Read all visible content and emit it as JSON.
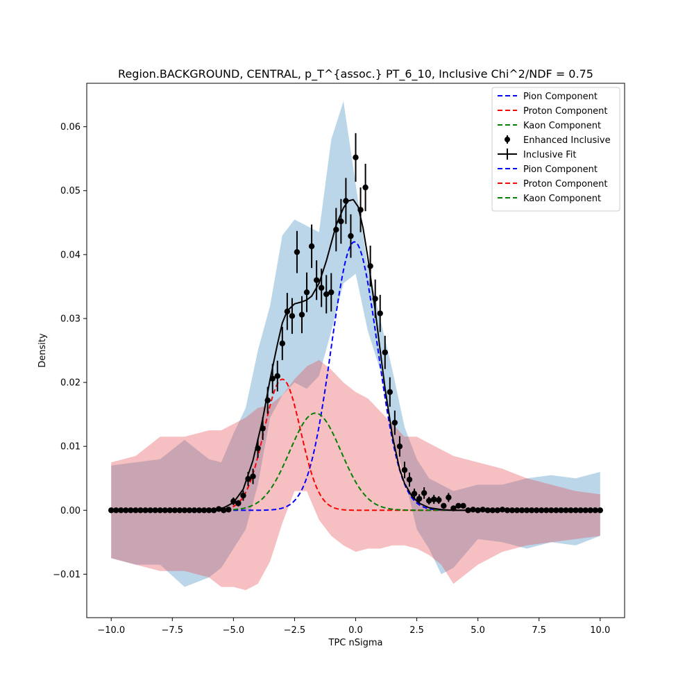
{
  "chart_data": {
    "type": "line",
    "title": "Region.BACKGROUND, CENTRAL, p_T^{assoc.} PT_6_10, Inclusive Chi^2/NDF = 0.75",
    "xlabel": "TPC nSigma",
    "ylabel": "Density",
    "xlim": [
      -11.0,
      11.0
    ],
    "ylim": [
      -0.0168,
      0.0668
    ],
    "xticks": [
      -10.0,
      -7.5,
      -5.0,
      -2.5,
      0.0,
      2.5,
      5.0,
      7.5,
      10.0
    ],
    "xtick_labels": [
      "−10.0",
      "−7.5",
      "−5.0",
      "−2.5",
      "0.0",
      "2.5",
      "5.0",
      "7.5",
      "10.0"
    ],
    "yticks": [
      -0.01,
      0.0,
      0.01,
      0.02,
      0.03,
      0.04,
      0.05,
      0.06
    ],
    "ytick_labels": [
      "−0.01",
      "0.00",
      "0.01",
      "0.02",
      "0.03",
      "0.04",
      "0.05",
      "0.06"
    ],
    "grid": false,
    "legend_position": "top-right",
    "legend": [
      {
        "label": "Pion Component",
        "style": "dashed",
        "color": "#0000ff"
      },
      {
        "label": "Proton Component",
        "style": "dashed",
        "color": "#ff0000"
      },
      {
        "label": "Kaon Component",
        "style": "dashed",
        "color": "#008000"
      },
      {
        "label": "Enhanced Inclusive",
        "style": "errorbar-point",
        "color": "#000000"
      },
      {
        "label": "Inclusive Fit",
        "style": "solid-errorbar",
        "color": "#000000"
      },
      {
        "label": "Pion Component",
        "style": "dashed",
        "color": "#0000ff"
      },
      {
        "label": "Proton Component",
        "style": "dashed",
        "color": "#ff0000"
      },
      {
        "label": "Kaon Component",
        "style": "dashed",
        "color": "#008000"
      }
    ],
    "components": [
      {
        "name": "Pion Component",
        "color": "#0000ff",
        "amplitude": 0.042,
        "mean": -0.05,
        "sigma": 0.95
      },
      {
        "name": "Proton Component",
        "color": "#ff0000",
        "amplitude": 0.0205,
        "mean": -3.0,
        "sigma": 0.75
      },
      {
        "name": "Kaon Component",
        "color": "#008000",
        "amplitude": 0.0152,
        "mean": -1.65,
        "sigma": 1.05
      }
    ],
    "bands": [
      {
        "name": "pion-uncertainty-band",
        "color": "#1f77b4",
        "opacity": 0.3,
        "x": [
          -10.0,
          -9.0,
          -8.0,
          -7.0,
          -6.0,
          -5.5,
          -5.0,
          -4.5,
          -4.0,
          -3.5,
          -3.0,
          -2.5,
          -2.0,
          -1.5,
          -1.0,
          -0.5,
          0.0,
          0.5,
          1.0,
          1.5,
          2.0,
          2.5,
          3.0,
          3.5,
          4.0,
          5.0,
          6.0,
          7.0,
          8.0,
          9.0,
          10.0
        ],
        "upper": [
          0.007,
          0.0075,
          0.008,
          0.011,
          0.008,
          0.0075,
          0.012,
          0.016,
          0.025,
          0.032,
          0.043,
          0.0455,
          0.0445,
          0.0435,
          0.058,
          0.064,
          0.051,
          0.038,
          0.03,
          0.022,
          0.013,
          0.008,
          0.005,
          0.004,
          0.003,
          0.004,
          0.004,
          0.005,
          0.0055,
          0.005,
          0.006
        ],
        "lower": [
          -0.0075,
          -0.0085,
          -0.0085,
          -0.012,
          -0.0105,
          -0.009,
          -0.006,
          -0.003,
          0.004,
          0.0145,
          0.018,
          0.02,
          0.019,
          0.021,
          0.028,
          0.0355,
          0.037,
          0.028,
          0.022,
          0.012,
          0.005,
          -0.003,
          -0.006,
          -0.01,
          -0.009,
          -0.0045,
          -0.005,
          -0.006,
          -0.005,
          -0.0055,
          -0.004
        ]
      },
      {
        "name": "proton-uncertainty-band",
        "color": "#e6494d",
        "opacity": 0.35,
        "x": [
          -10.0,
          -9.0,
          -8.0,
          -7.0,
          -6.0,
          -5.5,
          -5.0,
          -4.5,
          -4.0,
          -3.5,
          -3.0,
          -2.5,
          -2.0,
          -1.5,
          -1.0,
          -0.5,
          0.0,
          0.5,
          1.0,
          1.5,
          2.0,
          2.5,
          3.0,
          3.5,
          4.0,
          5.0,
          6.0,
          7.0,
          8.0,
          9.0,
          10.0
        ],
        "upper": [
          0.0075,
          0.0085,
          0.0115,
          0.0115,
          0.0125,
          0.0125,
          0.0135,
          0.0145,
          0.016,
          0.0165,
          0.018,
          0.0205,
          0.0225,
          0.0235,
          0.022,
          0.02,
          0.0185,
          0.0175,
          0.0155,
          0.0135,
          0.0115,
          0.0115,
          0.0105,
          0.0095,
          0.0085,
          0.0075,
          0.0065,
          0.005,
          0.004,
          0.003,
          0.0025
        ],
        "lower": [
          -0.0075,
          -0.0085,
          -0.0095,
          -0.0095,
          -0.0105,
          -0.012,
          -0.012,
          -0.0125,
          -0.0115,
          -0.008,
          -0.002,
          0.003,
          0.003,
          -0.0015,
          -0.004,
          -0.0055,
          -0.0065,
          -0.006,
          -0.006,
          -0.0055,
          -0.0055,
          -0.006,
          -0.007,
          -0.0085,
          -0.0115,
          -0.0085,
          -0.0065,
          -0.0055,
          -0.005,
          -0.0045,
          -0.004
        ]
      }
    ],
    "series": [
      {
        "name": "Enhanced Inclusive",
        "type": "errorbar",
        "color": "#000000",
        "x": [
          -10.0,
          -9.8,
          -9.6,
          -9.4,
          -9.2,
          -9.0,
          -8.8,
          -8.6,
          -8.4,
          -8.2,
          -8.0,
          -7.8,
          -7.6,
          -7.4,
          -7.2,
          -7.0,
          -6.8,
          -6.6,
          -6.4,
          -6.2,
          -6.0,
          -5.8,
          -5.6,
          -5.4,
          -5.2,
          -5.0,
          -4.8,
          -4.6,
          -4.4,
          -4.2,
          -4.0,
          -3.8,
          -3.6,
          -3.4,
          -3.2,
          -3.0,
          -2.8,
          -2.6,
          -2.4,
          -2.2,
          -2.0,
          -1.8,
          -1.6,
          -1.4,
          -1.2,
          -1.0,
          -0.8,
          -0.6,
          -0.4,
          -0.2,
          0.0,
          0.2,
          0.4,
          0.6,
          0.8,
          1.0,
          1.2,
          1.4,
          1.6,
          1.8,
          2.0,
          2.2,
          2.4,
          2.6,
          2.8,
          3.0,
          3.2,
          3.4,
          3.6,
          3.8,
          4.0,
          4.2,
          4.4,
          4.6,
          4.8,
          5.0,
          5.2,
          5.4,
          5.6,
          5.8,
          6.0,
          6.2,
          6.4,
          6.6,
          6.8,
          7.0,
          7.2,
          7.4,
          7.6,
          7.8,
          8.0,
          8.2,
          8.4,
          8.6,
          8.8,
          9.0,
          9.2,
          9.4,
          9.6,
          9.8,
          10.0
        ],
        "y": [
          0.0,
          0.0,
          0.0,
          0.0,
          0.0,
          0.0,
          0.0,
          0.0,
          0.0,
          0.0,
          0.0,
          0.0,
          0.0,
          0.0,
          0.0,
          0.0,
          0.0,
          0.0,
          0.0,
          0.0,
          0.0,
          0.0,
          0.0002,
          0.0,
          0.0001,
          0.0014,
          0.0011,
          0.0023,
          0.0049,
          0.0053,
          0.0097,
          0.0128,
          0.0172,
          0.0206,
          0.021,
          0.0261,
          0.0311,
          0.0304,
          0.0404,
          0.0306,
          0.0341,
          0.0413,
          0.036,
          0.0348,
          0.0338,
          0.0341,
          0.0439,
          0.0452,
          0.0484,
          0.0429,
          0.0552,
          0.047,
          0.0505,
          0.0382,
          0.0331,
          0.0308,
          0.0247,
          0.0185,
          0.0137,
          0.01,
          0.0063,
          0.0048,
          0.0026,
          0.0018,
          0.0027,
          0.0015,
          0.0017,
          0.0016,
          0.0007,
          0.002,
          0.0003,
          0.0007,
          0.0007,
          0.0,
          0.0001,
          0.0,
          0.0001,
          0.0,
          0.0,
          0.0,
          0.0001,
          0.0,
          0.0,
          0.0,
          0.0,
          0.0,
          0.0,
          0.0,
          0.0,
          0.0,
          0.0,
          0.0,
          0.0,
          0.0,
          0.0,
          0.0,
          0.0,
          0.0,
          0.0,
          0.0,
          0.0
        ],
        "yerr": [
          0.0,
          0.0,
          0.0,
          0.0,
          0.0,
          0.0,
          0.0,
          0.0,
          0.0,
          0.0,
          0.0,
          0.0,
          0.0,
          0.0,
          0.0,
          0.0,
          0.0,
          0.0,
          0.0,
          0.0,
          0.0,
          0.0,
          0.0003,
          0.0,
          0.0002,
          0.0006,
          0.0005,
          0.0008,
          0.0011,
          0.0012,
          0.0015,
          0.0018,
          0.0021,
          0.0023,
          0.0024,
          0.0026,
          0.0029,
          0.0028,
          0.0033,
          0.0029,
          0.0031,
          0.0034,
          0.0031,
          0.003,
          0.003,
          0.003,
          0.0034,
          0.0035,
          0.0036,
          0.0034,
          0.0038,
          0.0035,
          0.0037,
          0.0032,
          0.003,
          0.0029,
          0.0026,
          0.0023,
          0.0019,
          0.0016,
          0.0013,
          0.0011,
          0.0008,
          0.0007,
          0.0009,
          0.0006,
          0.0007,
          0.0006,
          0.0004,
          0.0007,
          0.0002,
          0.0004,
          0.0004,
          0.0,
          0.0001,
          0.0,
          0.0001,
          0.0,
          0.0,
          0.0,
          0.0001,
          0.0,
          0.0,
          0.0,
          0.0,
          0.0,
          0.0,
          0.0,
          0.0,
          0.0,
          0.0,
          0.0,
          0.0,
          0.0,
          0.0,
          0.0,
          0.0,
          0.0,
          0.0,
          0.0,
          0.0
        ]
      },
      {
        "name": "Inclusive Fit",
        "type": "line",
        "color": "#000000",
        "x": [
          -10.0,
          -6.0,
          -5.4,
          -5.0,
          -4.6,
          -4.2,
          -3.8,
          -3.5,
          -3.2,
          -3.0,
          -2.8,
          -2.5,
          -2.2,
          -2.0,
          -1.8,
          -1.5,
          -1.2,
          -1.0,
          -0.8,
          -0.5,
          -0.3,
          -0.1,
          0.1,
          0.3,
          0.5,
          0.8,
          1.0,
          1.2,
          1.5,
          1.8,
          2.0,
          2.3,
          2.6,
          3.0,
          3.5,
          4.0,
          5.0,
          10.0
        ],
        "y": [
          0.0,
          0.0,
          0.0004,
          0.0012,
          0.0033,
          0.0078,
          0.0143,
          0.0205,
          0.026,
          0.0293,
          0.0312,
          0.0323,
          0.0326,
          0.0329,
          0.0335,
          0.0355,
          0.039,
          0.0418,
          0.0446,
          0.0473,
          0.0484,
          0.0486,
          0.0475,
          0.0442,
          0.0395,
          0.0312,
          0.0251,
          0.0191,
          0.0117,
          0.0064,
          0.0042,
          0.0022,
          0.0011,
          0.0004,
          0.0001,
          0.0,
          0.0,
          0.0
        ]
      }
    ]
  }
}
